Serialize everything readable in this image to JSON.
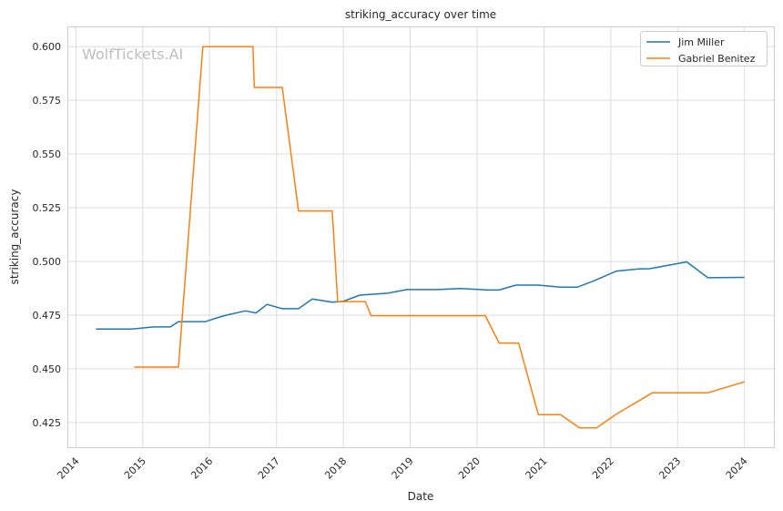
{
  "chart_data": {
    "type": "line",
    "title": "striking_accuracy over time",
    "xlabel": "Date",
    "ylabel": "striking_accuracy",
    "watermark": "WolfTickets.AI",
    "xlim": [
      "2013-11-20",
      "2024-06-10"
    ],
    "ylim": [
      0.4135,
      0.609
    ],
    "x_ticks": [
      "2014",
      "2015",
      "2016",
      "2017",
      "2018",
      "2019",
      "2020",
      "2021",
      "2022",
      "2023",
      "2024"
    ],
    "y_ticks": [
      "0.425",
      "0.450",
      "0.475",
      "0.500",
      "0.525",
      "0.550",
      "0.575",
      "0.600"
    ],
    "grid": true,
    "legend_position": "top-right",
    "series": [
      {
        "name": "Jim Miller",
        "color": "#1f77b4",
        "points": [
          {
            "x": "2014-04-20",
            "y": 0.4685
          },
          {
            "x": "2014-11-01",
            "y": 0.4685
          },
          {
            "x": "2015-03-01",
            "y": 0.4695
          },
          {
            "x": "2015-06-01",
            "y": 0.4695
          },
          {
            "x": "2015-07-15",
            "y": 0.472
          },
          {
            "x": "2015-12-10",
            "y": 0.472
          },
          {
            "x": "2016-02-01",
            "y": 0.4735
          },
          {
            "x": "2016-04-01",
            "y": 0.475
          },
          {
            "x": "2016-07-15",
            "y": 0.477
          },
          {
            "x": "2016-09-10",
            "y": 0.476
          },
          {
            "x": "2016-11-10",
            "y": 0.48
          },
          {
            "x": "2017-02-01",
            "y": 0.478
          },
          {
            "x": "2017-05-01",
            "y": 0.478
          },
          {
            "x": "2017-07-15",
            "y": 0.4825
          },
          {
            "x": "2017-11-01",
            "y": 0.481
          },
          {
            "x": "2018-01-01",
            "y": 0.4815
          },
          {
            "x": "2018-04-01",
            "y": 0.4843
          },
          {
            "x": "2018-09-01",
            "y": 0.4852
          },
          {
            "x": "2018-12-15",
            "y": 0.4869
          },
          {
            "x": "2019-06-01",
            "y": 0.4869
          },
          {
            "x": "2019-10-01",
            "y": 0.4874
          },
          {
            "x": "2020-03-01",
            "y": 0.4867
          },
          {
            "x": "2020-05-01",
            "y": 0.4867
          },
          {
            "x": "2020-08-01",
            "y": 0.489
          },
          {
            "x": "2020-12-01",
            "y": 0.489
          },
          {
            "x": "2021-04-01",
            "y": 0.488
          },
          {
            "x": "2021-07-01",
            "y": 0.488
          },
          {
            "x": "2021-10-01",
            "y": 0.491
          },
          {
            "x": "2022-02-01",
            "y": 0.4955
          },
          {
            "x": "2022-06-01",
            "y": 0.4965
          },
          {
            "x": "2022-08-01",
            "y": 0.4966
          },
          {
            "x": "2023-02-20",
            "y": 0.4998
          },
          {
            "x": "2023-06-15",
            "y": 0.4924
          },
          {
            "x": "2024-01-01",
            "y": 0.4926
          }
        ]
      },
      {
        "name": "Gabriel Benitez",
        "color": "#ff7f0e",
        "points": [
          {
            "x": "2014-11-15",
            "y": 0.4508
          },
          {
            "x": "2015-07-15",
            "y": 0.4508
          },
          {
            "x": "2015-11-25",
            "y": 0.6
          },
          {
            "x": "2016-08-25",
            "y": 0.6
          },
          {
            "x": "2016-09-01",
            "y": 0.581
          },
          {
            "x": "2017-02-01",
            "y": 0.581
          },
          {
            "x": "2017-05-01",
            "y": 0.5235
          },
          {
            "x": "2017-11-01",
            "y": 0.5235
          },
          {
            "x": "2017-12-01",
            "y": 0.4813
          },
          {
            "x": "2018-05-01",
            "y": 0.4813
          },
          {
            "x": "2018-06-01",
            "y": 0.4748
          },
          {
            "x": "2020-02-15",
            "y": 0.4748
          },
          {
            "x": "2020-05-01",
            "y": 0.462
          },
          {
            "x": "2020-08-15",
            "y": 0.462
          },
          {
            "x": "2020-12-01",
            "y": 0.4287
          },
          {
            "x": "2021-04-01",
            "y": 0.4287
          },
          {
            "x": "2021-07-15",
            "y": 0.4225
          },
          {
            "x": "2021-10-15",
            "y": 0.4225
          },
          {
            "x": "2022-02-01",
            "y": 0.429
          },
          {
            "x": "2022-06-15",
            "y": 0.4357
          },
          {
            "x": "2022-08-15",
            "y": 0.4388
          },
          {
            "x": "2023-06-15",
            "y": 0.4388
          },
          {
            "x": "2024-01-01",
            "y": 0.444
          }
        ]
      }
    ]
  }
}
